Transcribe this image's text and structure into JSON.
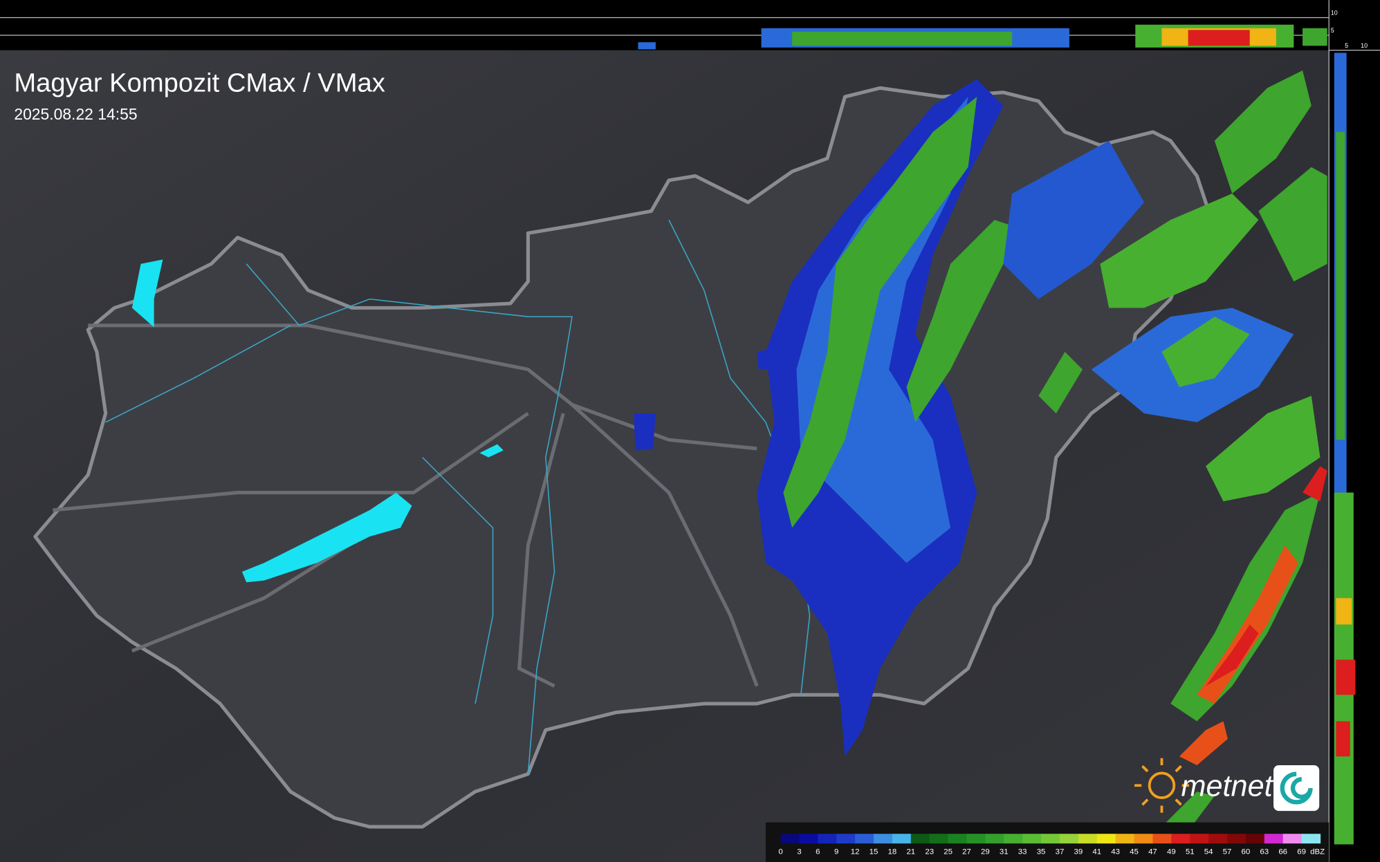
{
  "header": {
    "title": "Magyar Kompozit CMax / VMax",
    "timestamp": "2025.08.22 14:55"
  },
  "legend": {
    "ticks": [
      0,
      3,
      6,
      9,
      12,
      15,
      18,
      21,
      23,
      25,
      27,
      29,
      31,
      33,
      35,
      37,
      39,
      41,
      43,
      45,
      47,
      49,
      51,
      54,
      57,
      60,
      63,
      66,
      69
    ],
    "unit": "dBZ",
    "colors": [
      "#08087a",
      "#0a0ca0",
      "#1424b8",
      "#1e3cc8",
      "#2a5ed6",
      "#3c8ee0",
      "#48b4e8",
      "#0c5a14",
      "#136e1a",
      "#1a8220",
      "#269226",
      "#34a02c",
      "#46ae30",
      "#5abc34",
      "#74c838",
      "#96d23c",
      "#c8dc28",
      "#f0e614",
      "#f0b414",
      "#f08c14",
      "#e8501a",
      "#dc1e1e",
      "#c01414",
      "#a00c0c",
      "#820808",
      "#640404",
      "#d228d2",
      "#f08cf0",
      "#8ce6f0"
    ]
  },
  "profile_axes": {
    "top": [
      10,
      5
    ],
    "right": [
      5,
      10
    ]
  },
  "logo": {
    "text": "metnet"
  }
}
